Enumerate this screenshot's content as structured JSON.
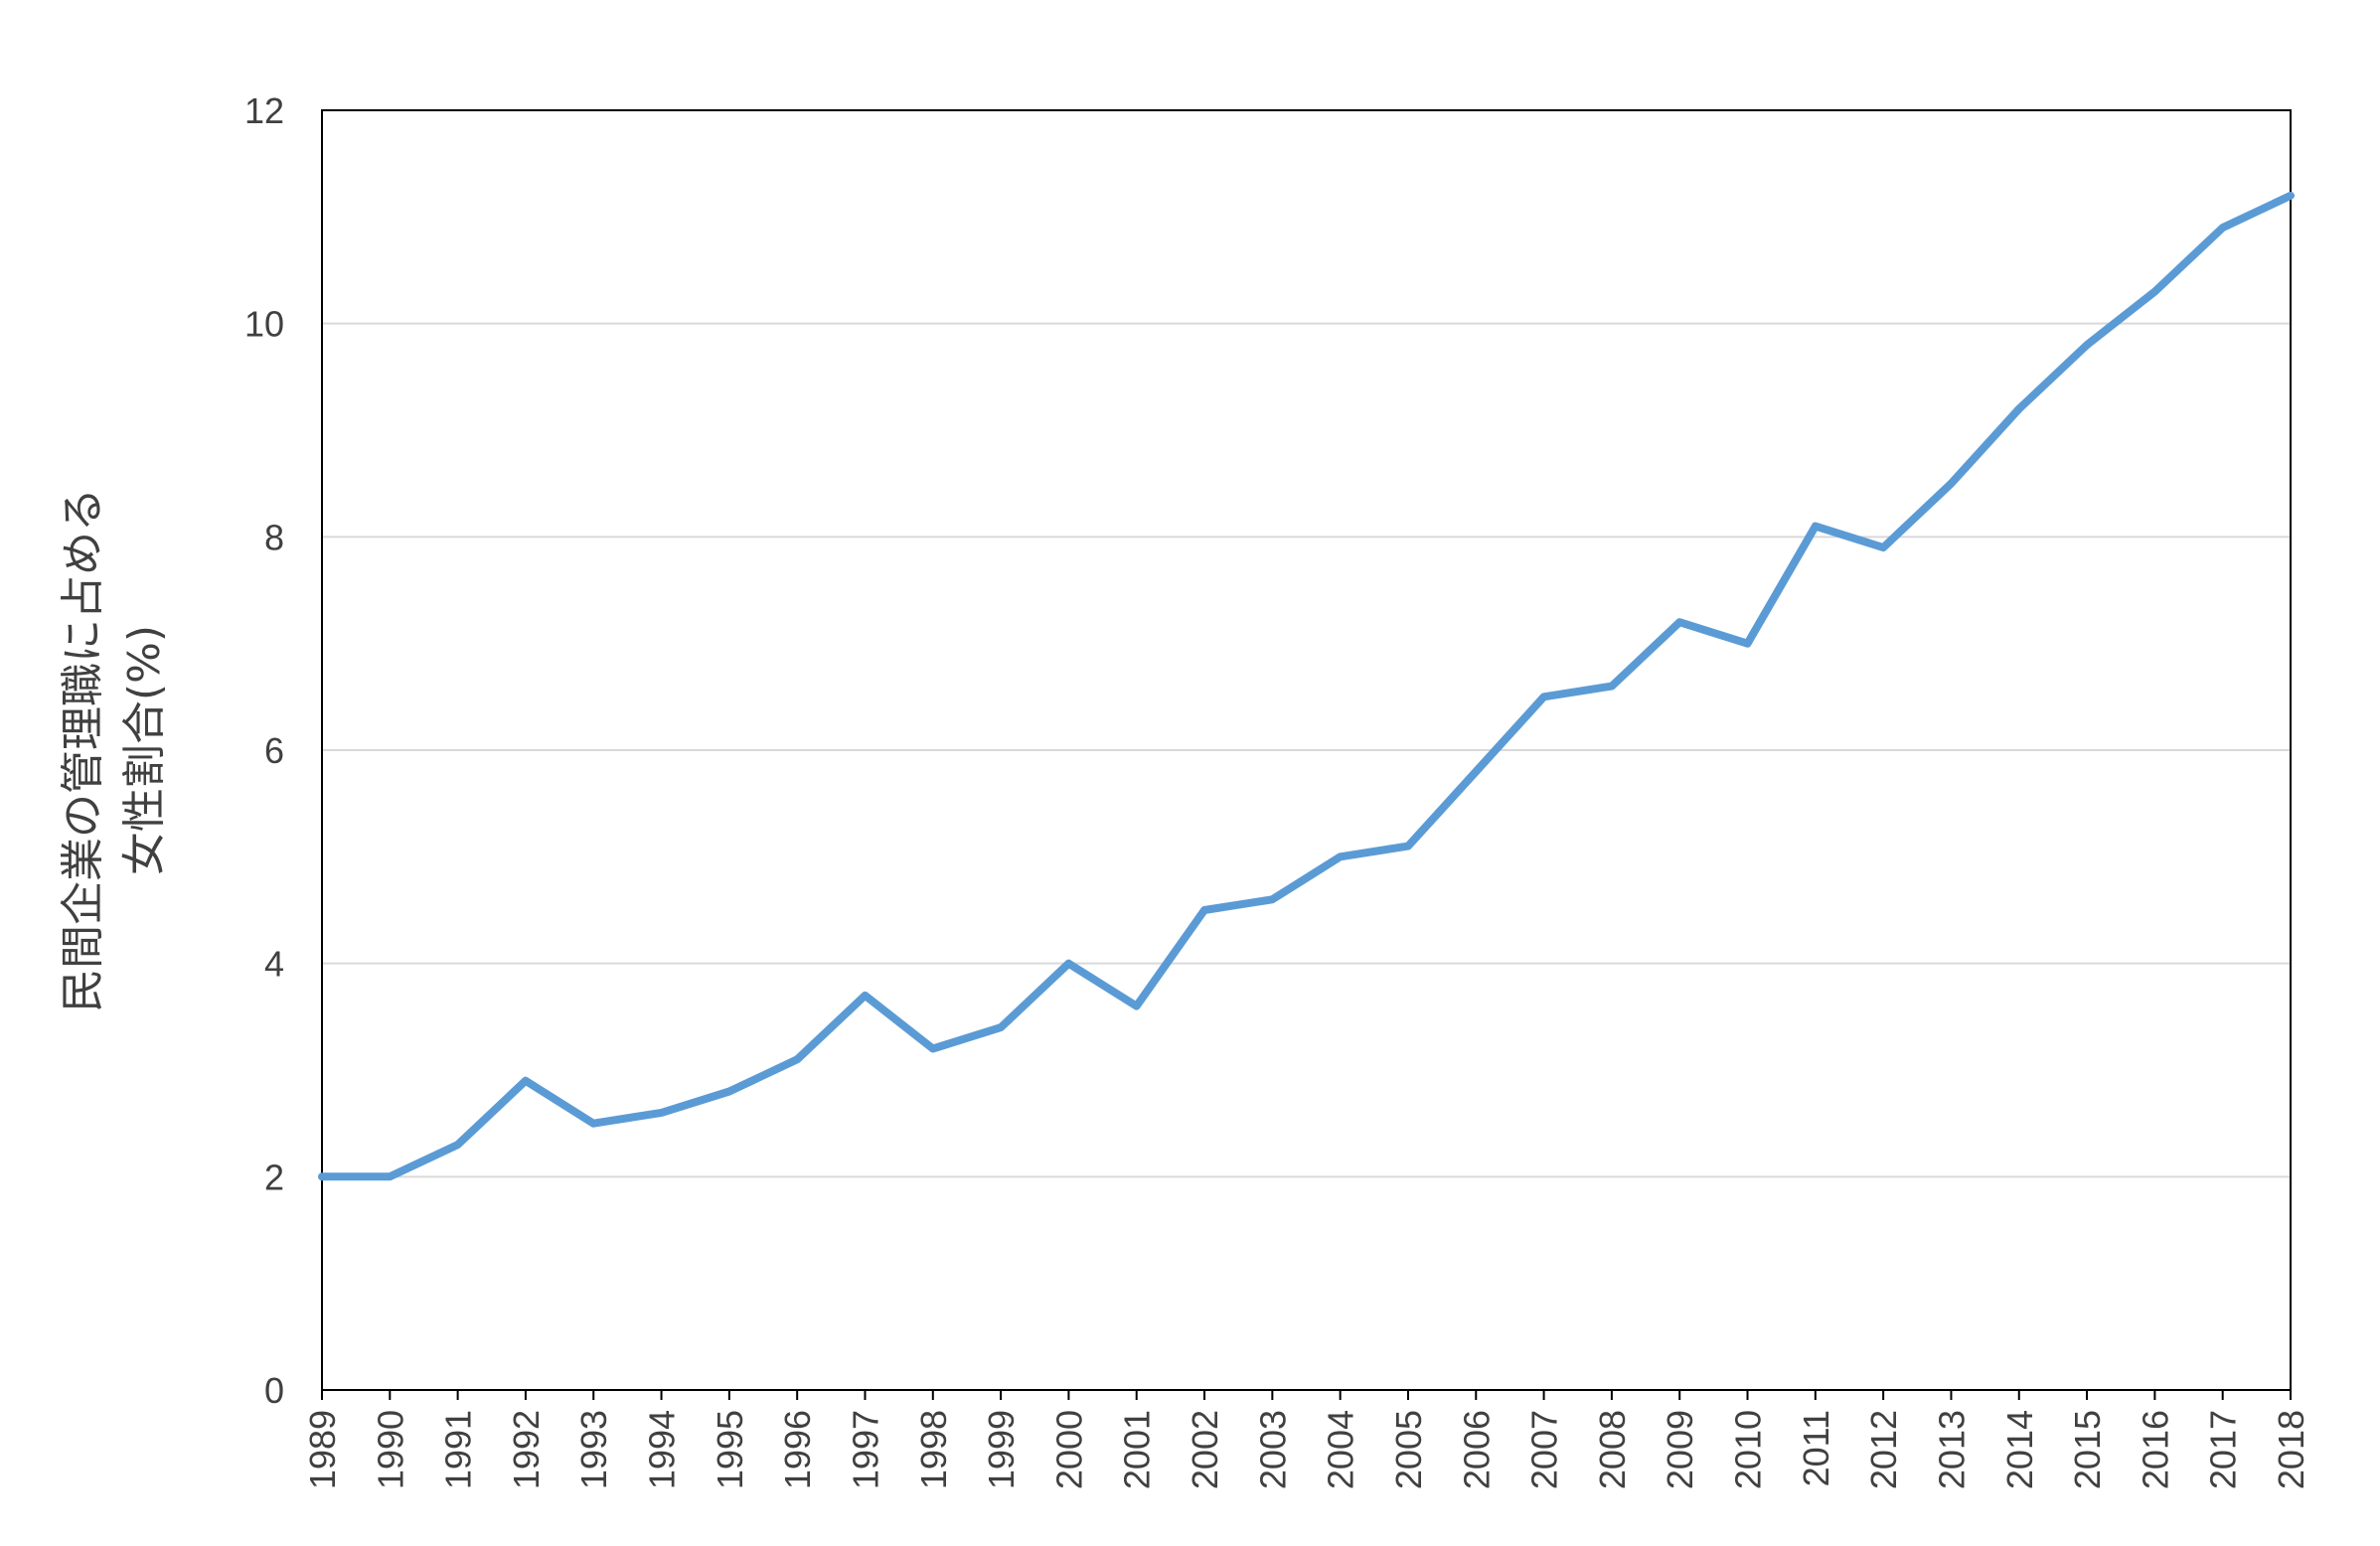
{
  "chart_data": {
    "type": "line",
    "title": "",
    "xlabel": "",
    "ylabel_lines": [
      "民間企業の管理職に占める",
      "女性割合(%)"
    ],
    "x": [
      "1989",
      "1990",
      "1991",
      "1992",
      "1993",
      "1994",
      "1995",
      "1996",
      "1997",
      "1998",
      "1999",
      "2000",
      "2001",
      "2002",
      "2003",
      "2004",
      "2005",
      "2006",
      "2007",
      "2008",
      "2009",
      "2010",
      "2011",
      "2012",
      "2013",
      "2014",
      "2015",
      "2016",
      "2017",
      "2018"
    ],
    "series": [
      {
        "color": "#5B9BD5",
        "values": [
          2.0,
          2.0,
          2.3,
          2.9,
          2.5,
          2.6,
          2.8,
          3.1,
          3.7,
          3.2,
          3.4,
          4.0,
          3.6,
          4.5,
          4.6,
          5.0,
          5.1,
          5.8,
          6.5,
          6.6,
          7.2,
          7.0,
          8.1,
          7.9,
          8.5,
          9.2,
          9.8,
          10.3,
          10.9,
          11.2
        ]
      }
    ],
    "ylim": [
      0,
      12
    ],
    "yticks": [
      "0",
      "2",
      "4",
      "6",
      "8",
      "10",
      "12"
    ],
    "grid": true,
    "legend": "none"
  }
}
